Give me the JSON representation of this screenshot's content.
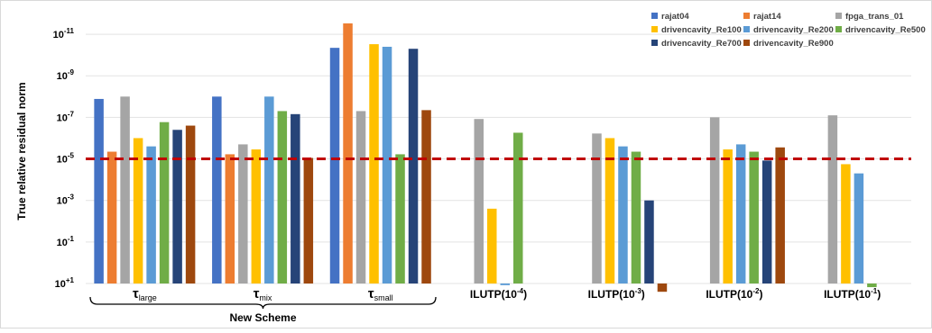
{
  "chart_data": {
    "type": "bar",
    "ylabel": "True relative residual norm",
    "y_axis_inverted": true,
    "y_scale": "log",
    "y_ticks": [
      {
        "value": 1e-11,
        "base": "10",
        "exp": "-11"
      },
      {
        "value": 1e-09,
        "base": "10",
        "exp": "-9"
      },
      {
        "value": 1e-07,
        "base": "10",
        "exp": "-7"
      },
      {
        "value": 1e-05,
        "base": "10",
        "exp": "-5"
      },
      {
        "value": 0.001,
        "base": "10",
        "exp": "-3"
      },
      {
        "value": 0.1,
        "base": "10",
        "exp": "-1"
      },
      {
        "value": 10,
        "base": "10",
        "exp": "+1"
      }
    ],
    "ylim": [
      10,
      1e-12
    ],
    "categories": [
      {
        "base": "τ",
        "sub": "large",
        "sup": ""
      },
      {
        "base": "τ",
        "sub": "mix",
        "sup": ""
      },
      {
        "base": "τ",
        "sub": "small",
        "sup": ""
      },
      {
        "base": "ILUTP(10",
        "sub": "",
        "sup": "-4",
        "tail": ")"
      },
      {
        "base": "ILUTP(10",
        "sub": "",
        "sup": "-3",
        "tail": ")"
      },
      {
        "base": "ILUTP(10",
        "sub": "",
        "sup": "-2",
        "tail": ")"
      },
      {
        "base": "ILUTP(10",
        "sub": "",
        "sup": "-1",
        "tail": ")"
      }
    ],
    "group_label": "New Scheme",
    "reference_line": {
      "value": 1e-05,
      "style": "dashed",
      "color": "#C00000"
    },
    "legend_position": "top-right",
    "series": [
      {
        "name": "rajat04",
        "color": "#4472C4",
        "values": [
          1.3e-08,
          1e-08,
          4.5e-11,
          null,
          null,
          null,
          null
        ]
      },
      {
        "name": "rajat14",
        "color": "#ED7D31",
        "values": [
          4.5e-06,
          6e-06,
          3e-12,
          null,
          null,
          null,
          null
        ]
      },
      {
        "name": "fpga_trans_01",
        "color": "#A5A5A5",
        "values": [
          1e-08,
          2e-06,
          5e-08,
          1.2e-07,
          6e-07,
          1e-07,
          8e-08
        ]
      },
      {
        "name": "drivencavity_Re100",
        "color": "#FFC000",
        "values": [
          1e-06,
          3.5e-06,
          3e-11,
          0.0025,
          1e-06,
          3.5e-06,
          1.8e-05
        ]
      },
      {
        "name": "drivencavity_Re200",
        "color": "#5B9BD5",
        "values": [
          2.5e-06,
          1e-08,
          4e-11,
          12,
          2.5e-06,
          2e-06,
          5e-05
        ]
      },
      {
        "name": "drivencavity_Re500",
        "color": "#70AD47",
        "values": [
          1.7e-07,
          5e-08,
          6e-06,
          5.5e-07,
          4.5e-06,
          4.5e-06,
          15
        ]
      },
      {
        "name": "drivencavity_Re700",
        "color": "#264478",
        "values": [
          4e-07,
          7e-08,
          5e-11,
          null,
          0.001,
          1.2e-05,
          null
        ]
      },
      {
        "name": "drivencavity_Re900",
        "color": "#9E480E",
        "values": [
          2.5e-07,
          9e-06,
          4.5e-08,
          null,
          25,
          2.8e-06,
          null
        ]
      }
    ]
  }
}
